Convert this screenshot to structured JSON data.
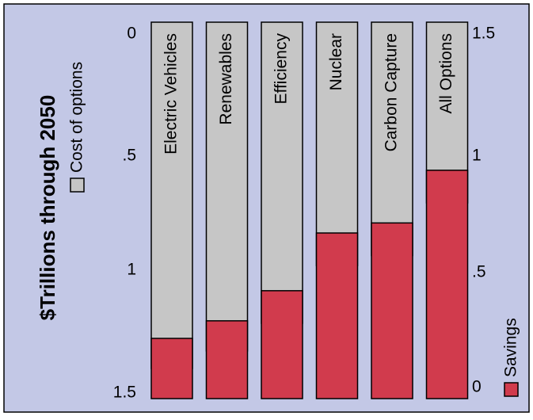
{
  "chart_data": {
    "type": "bar",
    "ylabel": "$Trillions through 2050",
    "left_axis": {
      "label": "Cost of options",
      "ticks": [
        "0",
        ".5",
        "1",
        "1.5"
      ],
      "tick_values": [
        0,
        0.5,
        1,
        1.5
      ],
      "range": [
        0,
        1.5
      ],
      "direction": "top-down"
    },
    "right_axis": {
      "label": "Savings",
      "ticks": [
        "0",
        ".5",
        "1",
        "1.5"
      ],
      "tick_values": [
        0,
        0.5,
        1,
        1.5
      ],
      "range": [
        0,
        1.5
      ],
      "direction": "bottom-up"
    },
    "categories": [
      "Electric Vehicles",
      "Renewables",
      "Efficiency",
      "Nuclear",
      "Carbon Capture",
      "All Options"
    ],
    "series": [
      {
        "name": "Cost of options",
        "values": [
          1.38,
          1.31,
          1.2,
          0.97,
          0.93,
          0.72
        ]
      },
      {
        "name": "Savings",
        "values": [
          0.24,
          0.31,
          0.43,
          0.66,
          0.7,
          0.91
        ]
      }
    ],
    "colors": {
      "background": "#c3c8e6",
      "cost": "#c6c6c6",
      "savings": "#d13b4d",
      "outline": "#000000"
    },
    "grid": false,
    "legend": "vertical-left-and-right"
  }
}
